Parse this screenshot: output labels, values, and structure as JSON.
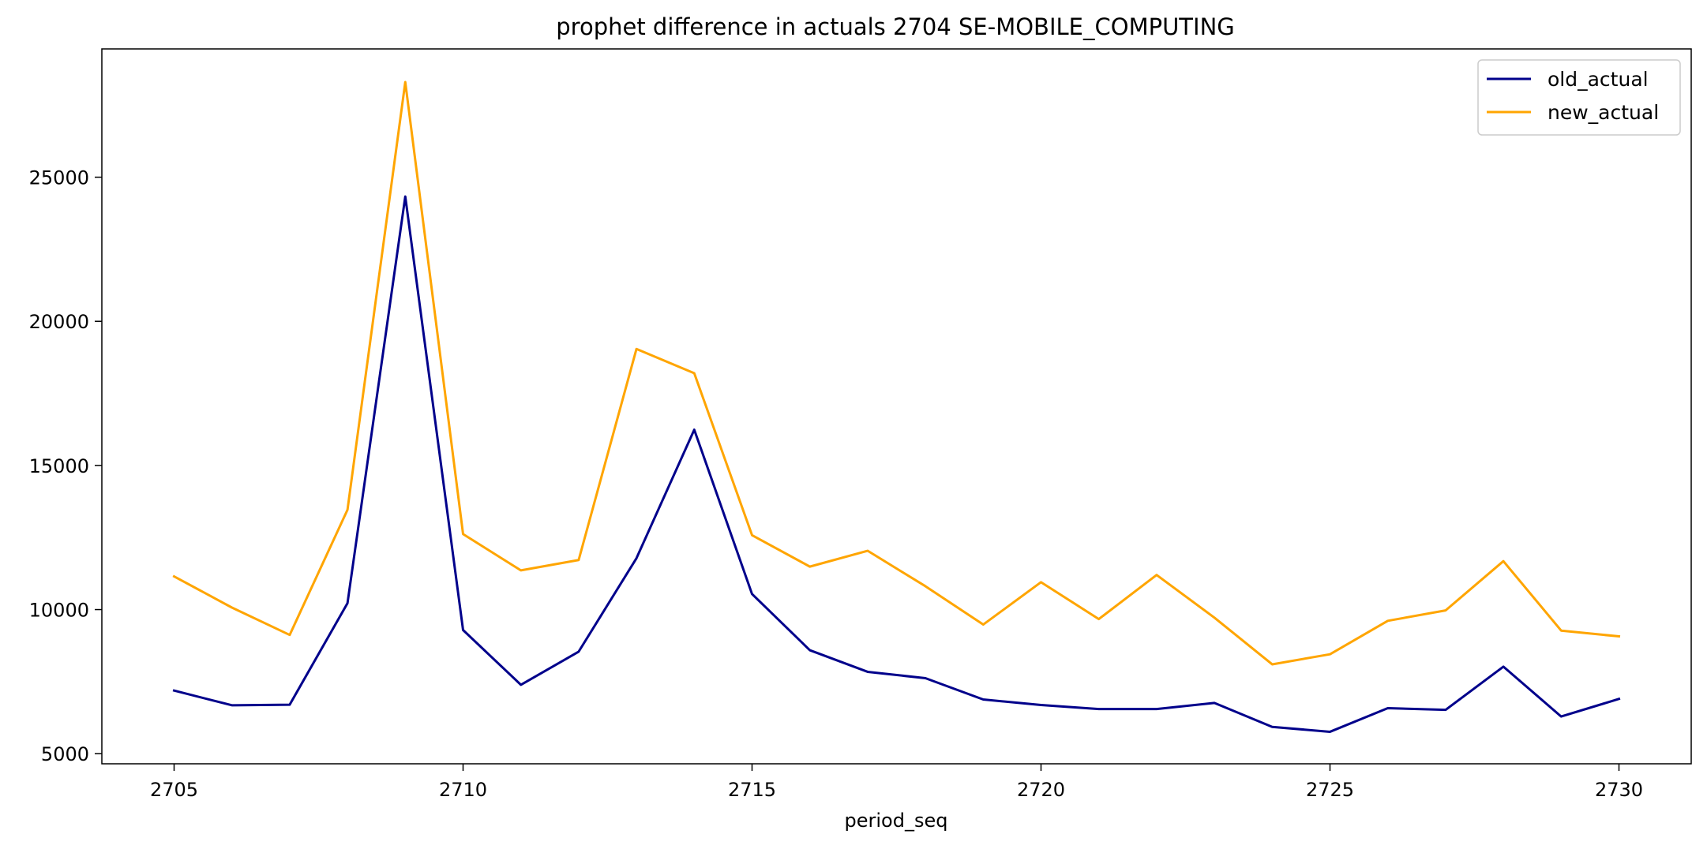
{
  "chart_data": {
    "type": "line",
    "title": "prophet difference in actuals 2704 SE-MOBILE_COMPUTING",
    "xlabel": "period_seq",
    "ylabel": "",
    "x": [
      2705,
      2706,
      2707,
      2708,
      2709,
      2710,
      2711,
      2712,
      2713,
      2714,
      2715,
      2716,
      2717,
      2718,
      2719,
      2720,
      2721,
      2722,
      2723,
      2724,
      2725,
      2726,
      2727,
      2728,
      2729,
      2730
    ],
    "xlim": [
      2703.75,
      2731.25
    ],
    "ylim": [
      4650,
      29450
    ],
    "x_ticks": [
      2705,
      2710,
      2715,
      2720,
      2725,
      2730
    ],
    "y_ticks": [
      5000,
      10000,
      15000,
      20000,
      25000
    ],
    "series": [
      {
        "name": "old_actual",
        "color": "#00008b",
        "values": [
          7190,
          6680,
          6700,
          10220,
          24330,
          9290,
          7390,
          8540,
          11780,
          16240,
          10540,
          8590,
          7840,
          7620,
          6880,
          6690,
          6550,
          6550,
          6760,
          5930,
          5760,
          6580,
          6520,
          8020,
          6290,
          6900
        ]
      },
      {
        "name": "new_actual",
        "color": "#ffa500",
        "values": [
          11150,
          10070,
          9120,
          13460,
          28300,
          12620,
          11360,
          11720,
          19040,
          18200,
          12580,
          11490,
          12040,
          10810,
          9480,
          10950,
          9670,
          11200,
          9720,
          8100,
          8450,
          9610,
          9970,
          11680,
          9270,
          9070
        ]
      }
    ],
    "legend_position": "upper right",
    "grid": false
  }
}
